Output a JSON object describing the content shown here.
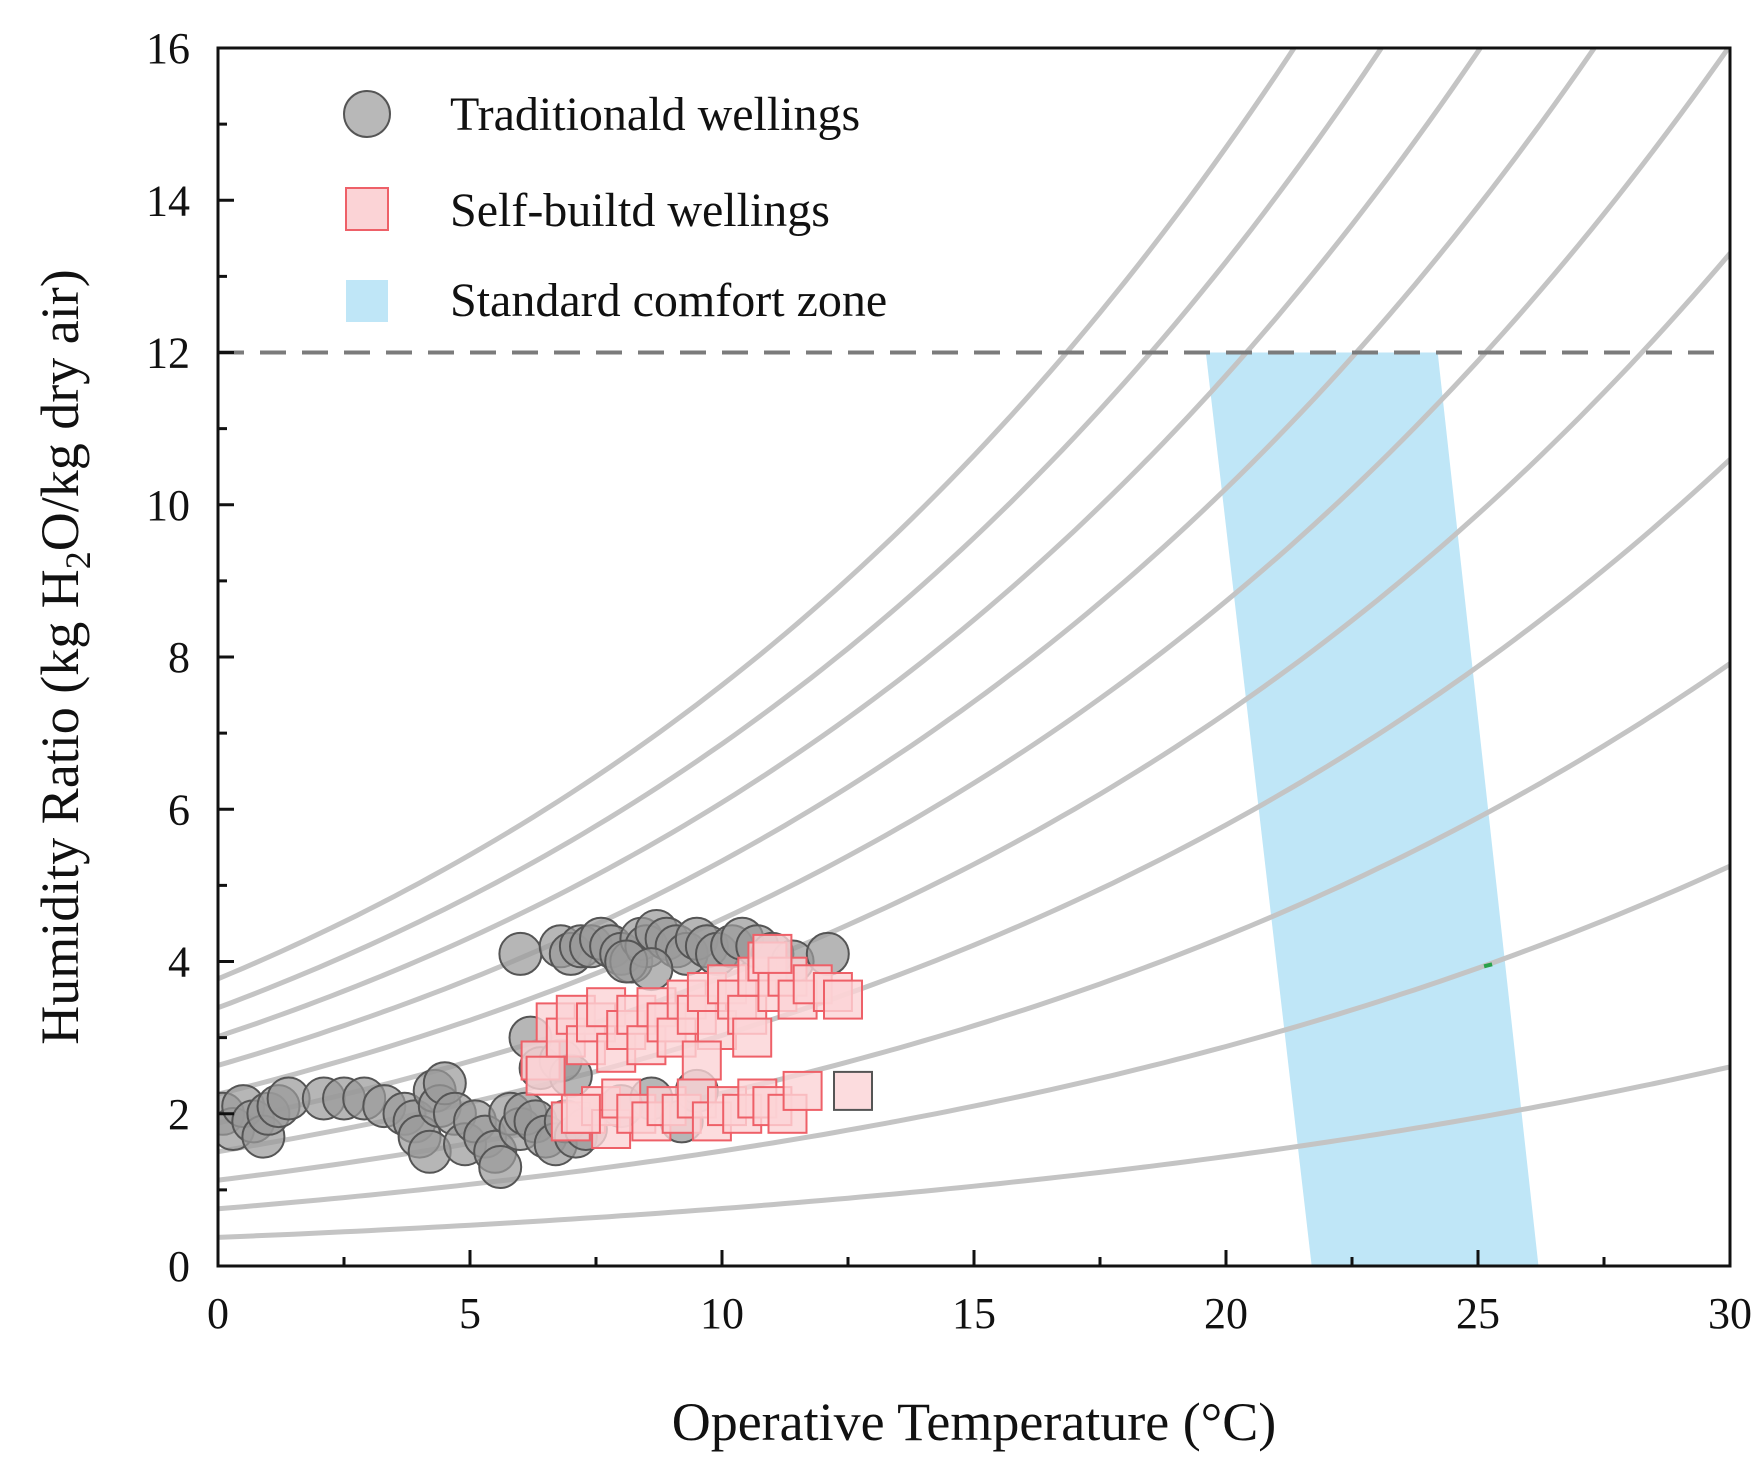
{
  "chart_data": {
    "type": "scatter",
    "title": "",
    "xlabel": "Operative Temperature (°C)",
    "ylabel_parts": [
      "Humidity Ratio (kg H",
      "2",
      "O/kg dry air)"
    ],
    "xlim": [
      0,
      30
    ],
    "ylim": [
      0,
      16
    ],
    "x_ticks": [
      0,
      5,
      10,
      15,
      20,
      25,
      30
    ],
    "y_ticks": [
      0,
      2,
      4,
      6,
      8,
      10,
      12,
      14,
      16
    ],
    "x_tick_labels": [
      "0",
      "5",
      "10",
      "15",
      "20",
      "25",
      "30"
    ],
    "y_tick_labels": [
      "0",
      "2",
      "4",
      "6",
      "8",
      "10",
      "12",
      "14",
      "16"
    ],
    "grid": false,
    "legend_position": "top-left",
    "relative_humidity_curves_percent": [
      10,
      20,
      30,
      40,
      50,
      60,
      70,
      80,
      90,
      100
    ],
    "humidity_limit": {
      "y": 12,
      "style": "dashed"
    },
    "comfort_zone": {
      "name": "Standard comfort zone",
      "polygon": [
        [
          21.7,
          0
        ],
        [
          26.2,
          0
        ],
        [
          24.2,
          12
        ],
        [
          19.6,
          12
        ]
      ],
      "color": "#bfe6f7"
    },
    "series": [
      {
        "name": "Traditionald wellings",
        "marker": "circle",
        "fill": "#9a9a9a",
        "stroke": "#555555",
        "points": [
          [
            0.1,
            2.0
          ],
          [
            0.3,
            1.8
          ],
          [
            0.5,
            2.1
          ],
          [
            0.7,
            1.9
          ],
          [
            0.9,
            1.7
          ],
          [
            1.0,
            2.0
          ],
          [
            1.2,
            2.1
          ],
          [
            1.4,
            2.2
          ],
          [
            2.1,
            2.2
          ],
          [
            2.5,
            2.2
          ],
          [
            2.9,
            2.2
          ],
          [
            3.3,
            2.1
          ],
          [
            3.7,
            2.0
          ],
          [
            3.9,
            1.9
          ],
          [
            4.0,
            1.7
          ],
          [
            4.2,
            1.5
          ],
          [
            4.3,
            2.3
          ],
          [
            4.4,
            2.1
          ],
          [
            4.5,
            2.4
          ],
          [
            4.7,
            2.0
          ],
          [
            4.9,
            1.6
          ],
          [
            5.1,
            1.9
          ],
          [
            5.3,
            1.7
          ],
          [
            5.5,
            1.5
          ],
          [
            5.6,
            1.3
          ],
          [
            5.8,
            2.0
          ],
          [
            6.0,
            1.8
          ],
          [
            6.1,
            2.0
          ],
          [
            6.3,
            1.9
          ],
          [
            6.5,
            1.7
          ],
          [
            6.7,
            1.6
          ],
          [
            6.9,
            1.9
          ],
          [
            7.1,
            1.7
          ],
          [
            7.3,
            1.8
          ],
          [
            6.2,
            3.0
          ],
          [
            6.4,
            2.6
          ],
          [
            6.8,
            2.7
          ],
          [
            7.0,
            2.5
          ],
          [
            8.0,
            2.1
          ],
          [
            8.6,
            2.2
          ],
          [
            9.2,
            1.9
          ],
          [
            9.5,
            2.3
          ],
          [
            6.0,
            4.1
          ],
          [
            6.8,
            4.2
          ],
          [
            7.0,
            4.1
          ],
          [
            7.2,
            4.2
          ],
          [
            7.4,
            4.2
          ],
          [
            7.6,
            4.3
          ],
          [
            7.8,
            4.2
          ],
          [
            8.0,
            4.1
          ],
          [
            8.2,
            4.0
          ],
          [
            8.4,
            4.3
          ],
          [
            8.5,
            4.2
          ],
          [
            8.7,
            4.4
          ],
          [
            8.9,
            4.3
          ],
          [
            9.1,
            4.2
          ],
          [
            9.3,
            4.1
          ],
          [
            9.5,
            4.3
          ],
          [
            9.7,
            4.2
          ],
          [
            9.9,
            4.1
          ],
          [
            10.2,
            4.2
          ],
          [
            10.4,
            4.3
          ],
          [
            10.7,
            4.2
          ],
          [
            11.0,
            4.1
          ],
          [
            11.4,
            4.0
          ],
          [
            12.1,
            4.1
          ],
          [
            8.1,
            4.0
          ],
          [
            8.6,
            3.9
          ]
        ]
      },
      {
        "name": "Self-builtd wellings",
        "marker": "square",
        "fill": "#fbd3d6",
        "stroke": "#ee6068",
        "points": [
          [
            6.4,
            2.7
          ],
          [
            6.5,
            2.5
          ],
          [
            6.7,
            3.2
          ],
          [
            6.9,
            3.0
          ],
          [
            7.1,
            3.3
          ],
          [
            7.3,
            2.9
          ],
          [
            7.5,
            3.2
          ],
          [
            7.7,
            3.4
          ],
          [
            7.9,
            2.8
          ],
          [
            8.1,
            3.1
          ],
          [
            8.3,
            3.3
          ],
          [
            8.5,
            2.9
          ],
          [
            8.7,
            3.4
          ],
          [
            8.9,
            3.2
          ],
          [
            9.1,
            3.0
          ],
          [
            9.3,
            3.5
          ],
          [
            9.5,
            3.3
          ],
          [
            9.7,
            3.6
          ],
          [
            9.9,
            3.1
          ],
          [
            10.1,
            3.7
          ],
          [
            10.3,
            3.5
          ],
          [
            10.5,
            3.3
          ],
          [
            10.7,
            3.8
          ],
          [
            10.9,
            4.0
          ],
          [
            11.1,
            3.6
          ],
          [
            11.3,
            3.8
          ],
          [
            11.5,
            3.5
          ],
          [
            11.8,
            3.7
          ],
          [
            12.2,
            3.6
          ],
          [
            12.4,
            3.5
          ],
          [
            9.6,
            2.7
          ],
          [
            10.6,
            3.0
          ],
          [
            11.0,
            4.1
          ],
          [
            7.0,
            1.9
          ],
          [
            7.3,
            2.0
          ],
          [
            7.6,
            2.1
          ],
          [
            7.8,
            1.8
          ],
          [
            8.0,
            2.2
          ],
          [
            8.3,
            2.0
          ],
          [
            8.6,
            1.9
          ],
          [
            8.9,
            2.1
          ],
          [
            9.2,
            2.0
          ],
          [
            9.5,
            2.2
          ],
          [
            9.8,
            1.9
          ],
          [
            10.1,
            2.1
          ],
          [
            10.4,
            2.0
          ],
          [
            10.7,
            2.2
          ],
          [
            11.0,
            2.1
          ],
          [
            11.3,
            2.0
          ],
          [
            11.6,
            2.3
          ],
          [
            7.2,
            2.0
          ],
          [
            12.6,
            2.3
          ]
        ]
      }
    ],
    "annotations": [
      {
        "label": "green-mark",
        "x": 25.2,
        "y": 3.95
      }
    ]
  }
}
